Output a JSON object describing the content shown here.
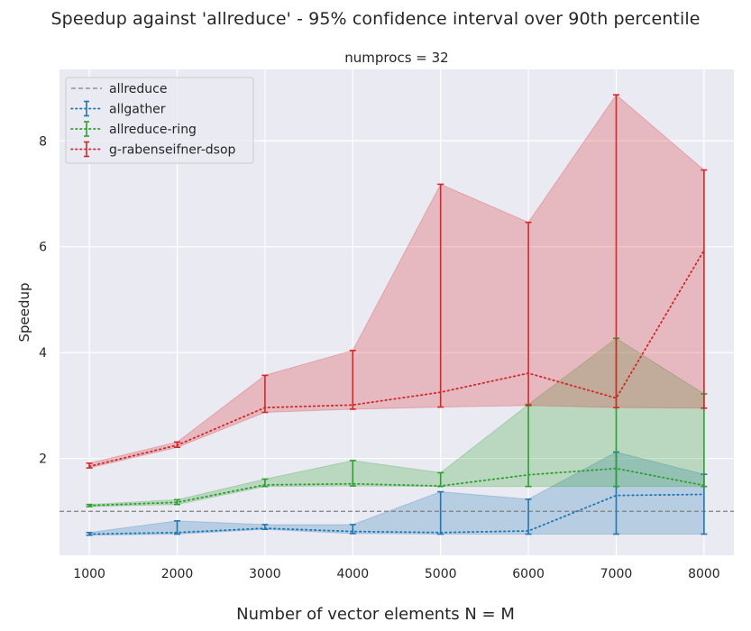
{
  "figure": {
    "suptitle": "Speedup against 'allreduce' - 95% confidence interval over 90th percentile",
    "xlabel": "Number of vector elements N = M"
  },
  "chart_data": {
    "type": "line",
    "title": "numprocs = 32",
    "xlabel": "Number of vector elements N = M",
    "ylabel": "Speedup",
    "xlim": [
      660,
      8340
    ],
    "ylim": [
      0.17,
      9.35
    ],
    "x_ticks": [
      1000,
      2000,
      3000,
      4000,
      5000,
      6000,
      7000,
      8000
    ],
    "y_ticks": [
      2,
      4,
      6,
      8
    ],
    "grid": true,
    "legend_position": "top-left",
    "x": [
      1000,
      2000,
      3000,
      4000,
      5000,
      6000,
      7000,
      8000
    ],
    "reference": {
      "name": "allreduce",
      "y": 1.0,
      "color": "#808080",
      "style": "dashed"
    },
    "series": [
      {
        "name": "allgather",
        "color": "#1f77b4",
        "values": [
          0.57,
          0.6,
          0.68,
          0.62,
          0.6,
          0.63,
          1.3,
          1.32
        ],
        "lower": [
          0.55,
          0.57,
          0.66,
          0.58,
          0.57,
          0.57,
          0.57,
          0.57
        ],
        "upper": [
          0.6,
          0.82,
          0.75,
          0.75,
          1.37,
          1.23,
          2.12,
          1.7
        ]
      },
      {
        "name": "allreduce-ring",
        "color": "#2ca02c",
        "values": [
          1.11,
          1.17,
          1.5,
          1.52,
          1.48,
          1.69,
          1.81,
          1.49
        ],
        "lower": [
          1.09,
          1.13,
          1.47,
          1.48,
          1.47,
          1.47,
          1.47,
          1.47
        ],
        "upper": [
          1.13,
          1.22,
          1.61,
          1.96,
          1.73,
          3.02,
          4.27,
          3.22
        ]
      },
      {
        "name": "g-rabenseifner-dsop",
        "color": "#d62728",
        "values": [
          1.85,
          2.25,
          2.96,
          3.01,
          3.25,
          3.61,
          3.14,
          5.93
        ],
        "lower": [
          1.82,
          2.21,
          2.87,
          2.93,
          2.97,
          3.0,
          2.96,
          2.95
        ],
        "upper": [
          1.91,
          2.31,
          3.57,
          4.04,
          7.18,
          6.46,
          8.87,
          7.45
        ]
      }
    ]
  }
}
